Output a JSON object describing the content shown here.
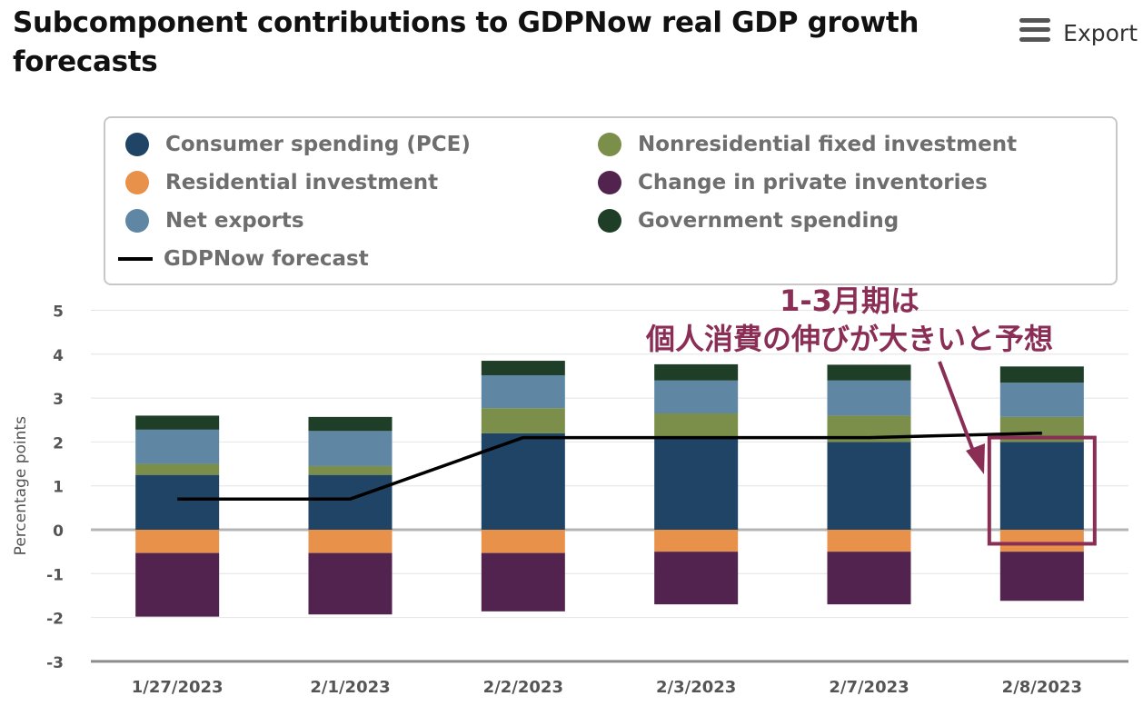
{
  "title": "Subcomponent contributions to GDPNow real GDP growth forecasts",
  "export": {
    "menu_icon": "hamburger-menu-icon",
    "label": "Export"
  },
  "legend": [
    {
      "name": "Consumer spending (PCE)",
      "color": "#1f4465",
      "symbol": "circle"
    },
    {
      "name": "Nonresidential fixed investment",
      "color": "#7c8f4a",
      "symbol": "circle"
    },
    {
      "name": "Residential investment",
      "color": "#e8914a",
      "symbol": "circle"
    },
    {
      "name": "Change in private inventories",
      "color": "#52234e",
      "symbol": "circle"
    },
    {
      "name": "Net exports",
      "color": "#5f87a4",
      "symbol": "circle"
    },
    {
      "name": "Government spending",
      "color": "#1e3e28",
      "symbol": "circle"
    },
    {
      "name": "GDPNow forecast",
      "color": "#000000",
      "symbol": "line"
    }
  ],
  "annotation": {
    "line1": "1-3月期は",
    "line2": "個人消費の伸びが大きいと予想",
    "color": "#8b2e55"
  },
  "chart_data": {
    "type": "bar",
    "stacked": true,
    "categories": [
      "1/27/2023",
      "2/1/2023",
      "2/2/2023",
      "2/3/2023",
      "2/7/2023",
      "2/8/2023"
    ],
    "ylabel": "Percentage points",
    "ylim": [
      -3,
      5
    ],
    "yticks": [
      5,
      4,
      3,
      2,
      1,
      0,
      -1,
      -2,
      -3
    ],
    "series": [
      {
        "name": "Consumer spending (PCE)",
        "color": "#1f4465",
        "values": [
          1.25,
          1.25,
          2.2,
          2.1,
          2.0,
          2.0
        ]
      },
      {
        "name": "Nonresidential fixed investment",
        "color": "#7c8f4a",
        "values": [
          0.25,
          0.2,
          0.57,
          0.55,
          0.6,
          0.57
        ]
      },
      {
        "name": "Net exports",
        "color": "#5f87a4",
        "values": [
          0.78,
          0.8,
          0.75,
          0.75,
          0.8,
          0.78
        ]
      },
      {
        "name": "Government spending",
        "color": "#1e3e28",
        "values": [
          0.32,
          0.32,
          0.33,
          0.37,
          0.36,
          0.37
        ]
      },
      {
        "name": "Residential investment",
        "color": "#e8914a",
        "values": [
          -0.53,
          -0.53,
          -0.53,
          -0.5,
          -0.5,
          -0.5
        ]
      },
      {
        "name": "Change in private inventories",
        "color": "#52234e",
        "values": [
          -1.45,
          -1.4,
          -1.33,
          -1.2,
          -1.2,
          -1.12
        ]
      }
    ],
    "line": {
      "name": "GDPNow forecast",
      "color": "#000000",
      "values": [
        0.7,
        0.7,
        2.1,
        2.1,
        2.1,
        2.2
      ]
    },
    "grid": true,
    "legend_position": "top"
  }
}
